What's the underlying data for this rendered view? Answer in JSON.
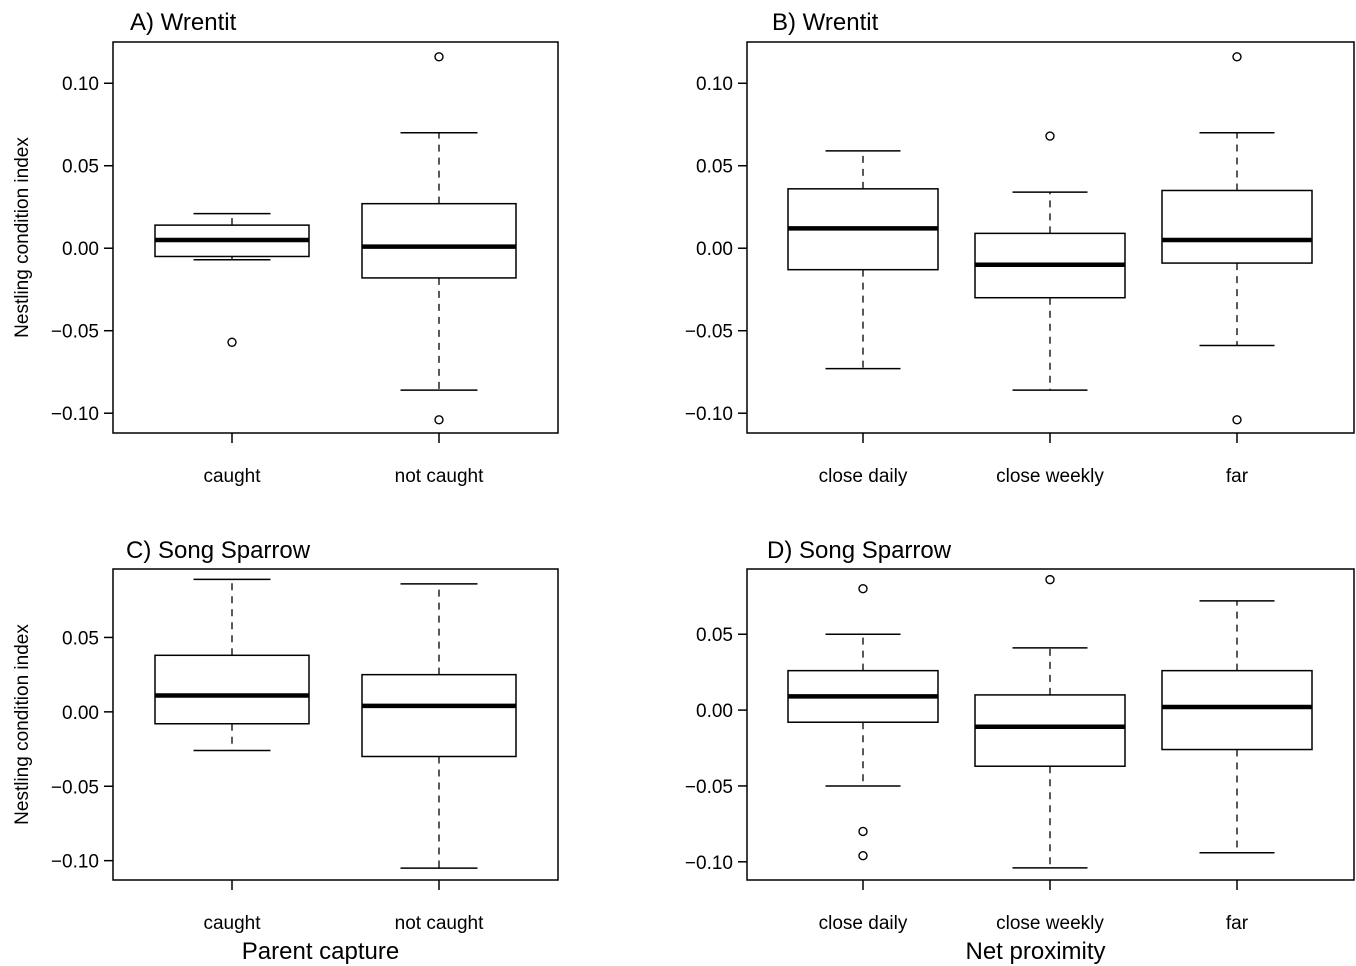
{
  "chart_data": [
    {
      "type": "boxplot",
      "title": "A) Wrentit",
      "ylabel": "Nestling condition index",
      "xlabel": "",
      "ylim": [
        -0.112,
        0.125
      ],
      "yticks": [
        -0.1,
        -0.05,
        0.0,
        0.05,
        0.1
      ],
      "ytick_labels": [
        "−0.10",
        "−0.05",
        "0.00",
        "0.05",
        "0.10"
      ],
      "categories": [
        "caught",
        "not caught"
      ],
      "boxes": [
        {
          "whisker_low": -0.007,
          "q1": -0.005,
          "median": 0.005,
          "q3": 0.014,
          "whisker_high": 0.021,
          "outliers": [
            -0.057
          ]
        },
        {
          "whisker_low": -0.086,
          "q1": -0.018,
          "median": 0.001,
          "q3": 0.027,
          "whisker_high": 0.07,
          "outliers": [
            0.116,
            -0.104
          ]
        }
      ]
    },
    {
      "type": "boxplot",
      "title": "B) Wrentit",
      "ylabel": "",
      "xlabel": "",
      "ylim": [
        -0.112,
        0.125
      ],
      "yticks": [
        -0.1,
        -0.05,
        0.0,
        0.05,
        0.1
      ],
      "ytick_labels": [
        "−0.10",
        "−0.05",
        "0.00",
        "0.05",
        "0.10"
      ],
      "categories": [
        "close daily",
        "close weekly",
        "far"
      ],
      "boxes": [
        {
          "whisker_low": -0.073,
          "q1": -0.013,
          "median": 0.012,
          "q3": 0.036,
          "whisker_high": 0.059,
          "outliers": []
        },
        {
          "whisker_low": -0.086,
          "q1": -0.03,
          "median": -0.01,
          "q3": 0.009,
          "whisker_high": 0.034,
          "outliers": [
            0.068
          ]
        },
        {
          "whisker_low": -0.059,
          "q1": -0.009,
          "median": 0.005,
          "q3": 0.035,
          "whisker_high": 0.07,
          "outliers": [
            0.116,
            -0.104
          ]
        }
      ]
    },
    {
      "type": "boxplot",
      "title": "C) Song Sparrow",
      "ylabel": "Nestling condition index",
      "xlabel": "Parent capture",
      "ylim": [
        -0.113,
        0.096
      ],
      "yticks": [
        -0.1,
        -0.05,
        0.0,
        0.05
      ],
      "ytick_labels": [
        "−0.10",
        "−0.05",
        "0.00",
        "0.05"
      ],
      "categories": [
        "caught",
        "not caught"
      ],
      "boxes": [
        {
          "whisker_low": -0.026,
          "q1": -0.008,
          "median": 0.011,
          "q3": 0.038,
          "whisker_high": 0.089,
          "outliers": []
        },
        {
          "whisker_low": -0.105,
          "q1": -0.03,
          "median": 0.004,
          "q3": 0.025,
          "whisker_high": 0.086,
          "outliers": []
        }
      ]
    },
    {
      "type": "boxplot",
      "title": "D) Song Sparrow",
      "ylabel": "",
      "xlabel": "Net proximity",
      "ylim": [
        -0.112,
        0.093
      ],
      "yticks": [
        -0.1,
        -0.05,
        0.0,
        0.05
      ],
      "ytick_labels": [
        "−0.10",
        "−0.05",
        "0.00",
        "0.05"
      ],
      "categories": [
        "close daily",
        "close weekly",
        "far"
      ],
      "boxes": [
        {
          "whisker_low": -0.05,
          "q1": -0.008,
          "median": 0.009,
          "q3": 0.026,
          "whisker_high": 0.05,
          "outliers": [
            0.08,
            -0.08,
            -0.096
          ]
        },
        {
          "whisker_low": -0.104,
          "q1": -0.037,
          "median": -0.011,
          "q3": 0.01,
          "whisker_high": 0.041,
          "outliers": [
            0.086
          ]
        },
        {
          "whisker_low": -0.094,
          "q1": -0.026,
          "median": 0.002,
          "q3": 0.026,
          "whisker_high": 0.072,
          "outliers": []
        }
      ]
    }
  ]
}
